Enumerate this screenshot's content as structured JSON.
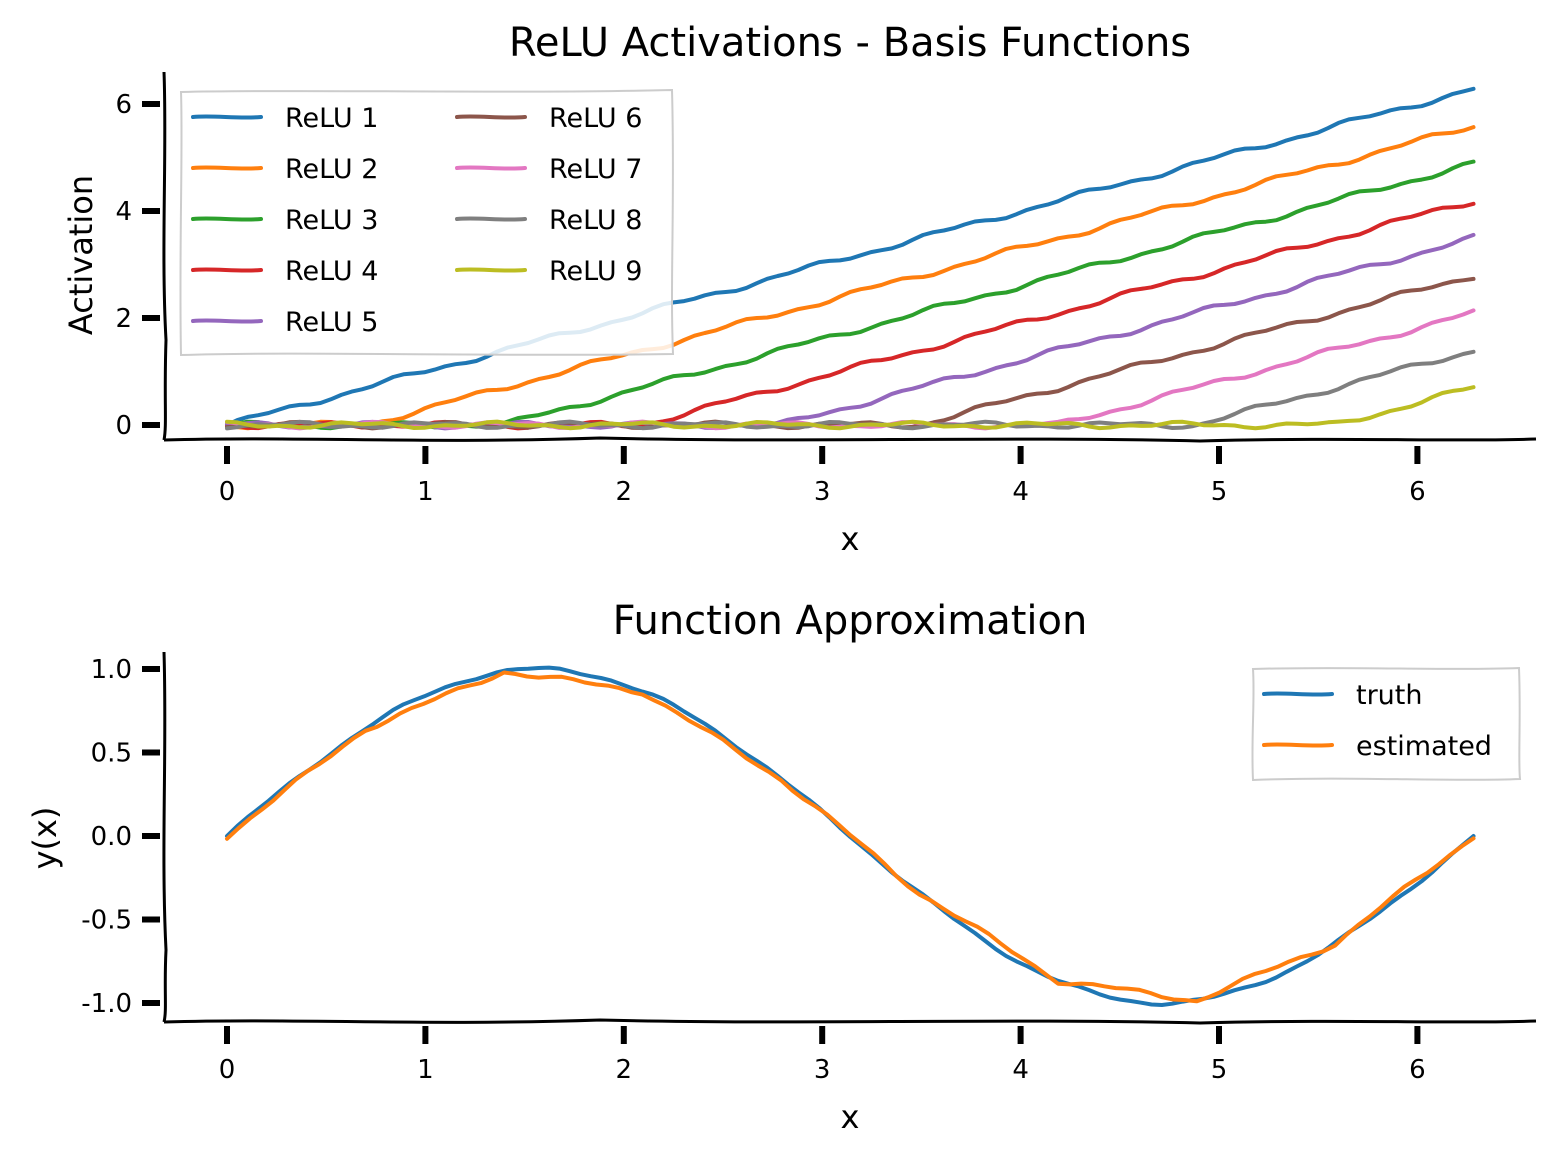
{
  "chart_data": [
    {
      "type": "line",
      "title": "ReLU Activations - Basis Functions",
      "xlabel": "x",
      "ylabel": "Activation",
      "xlim": [
        -0.3,
        6.6
      ],
      "ylim": [
        -0.3,
        6.6
      ],
      "xticks": [
        0,
        1,
        2,
        3,
        4,
        5,
        6
      ],
      "xtick_labels": [
        "0",
        "1",
        "2",
        "3",
        "4",
        "5",
        "6"
      ],
      "yticks": [
        0,
        2,
        4,
        6
      ],
      "ytick_labels": [
        "0",
        "2",
        "4",
        "6"
      ],
      "grid": false,
      "legend": "upper left",
      "legend_columns": 2,
      "x_domain": [
        0,
        6.283
      ],
      "series": [
        {
          "name": "ReLU 1",
          "color": "#1f77b4",
          "knot": 0.0,
          "values_at": {
            "x": [
              0,
              3,
              6.283
            ],
            "y": [
              0,
              3,
              6.283
            ]
          }
        },
        {
          "name": "ReLU 2",
          "color": "#ff7f0e",
          "knot": 0.698,
          "values_at": {
            "x": [
              0.698,
              3,
              6.283
            ],
            "y": [
              0,
              2.302,
              5.585
            ]
          }
        },
        {
          "name": "ReLU 3",
          "color": "#2ca02c",
          "knot": 1.396,
          "values_at": {
            "x": [
              1.396,
              3,
              6.283
            ],
            "y": [
              0,
              1.604,
              4.887
            ]
          }
        },
        {
          "name": "ReLU 4",
          "color": "#d62728",
          "knot": 2.094,
          "values_at": {
            "x": [
              2.094,
              4,
              6.283
            ],
            "y": [
              0,
              1.906,
              4.189
            ]
          }
        },
        {
          "name": "ReLU 5",
          "color": "#9467bd",
          "knot": 2.793,
          "values_at": {
            "x": [
              2.793,
              4,
              6.283
            ],
            "y": [
              0,
              1.207,
              3.49
            ]
          }
        },
        {
          "name": "ReLU 6",
          "color": "#8c564b",
          "knot": 3.491,
          "values_at": {
            "x": [
              3.491,
              5,
              6.283
            ],
            "y": [
              0,
              1.509,
              2.792
            ]
          }
        },
        {
          "name": "ReLU 7",
          "color": "#e377c2",
          "knot": 4.189,
          "values_at": {
            "x": [
              4.189,
              5,
              6.283
            ],
            "y": [
              0,
              0.811,
              2.094
            ]
          }
        },
        {
          "name": "ReLU 8",
          "color": "#7f7f7f",
          "knot": 4.887,
          "values_at": {
            "x": [
              4.887,
              6,
              6.283
            ],
            "y": [
              0,
              1.113,
              1.396
            ]
          }
        },
        {
          "name": "ReLU 9",
          "color": "#bcbd22",
          "knot": 5.585,
          "values_at": {
            "x": [
              5.585,
              6,
              6.283
            ],
            "y": [
              0,
              0.415,
              0.698
            ]
          }
        }
      ]
    },
    {
      "type": "line",
      "title": "Function Approximation",
      "xlabel": "x",
      "ylabel": "y(x)",
      "xlim": [
        -0.3,
        6.6
      ],
      "ylim": [
        -1.1,
        1.1
      ],
      "xticks": [
        0,
        1,
        2,
        3,
        4,
        5,
        6
      ],
      "xtick_labels": [
        "0",
        "1",
        "2",
        "3",
        "4",
        "5",
        "6"
      ],
      "yticks": [
        1.0,
        0.5,
        0.0,
        -0.5,
        -1.0
      ],
      "ytick_labels": [
        "1.0",
        "0.5",
        "0.0",
        "-0.5",
        "-1.0"
      ],
      "grid": false,
      "legend": "upper right",
      "series": [
        {
          "name": "truth",
          "color": "#1f77b4",
          "x": [
            0,
            0.35,
            0.7,
            1.05,
            1.4,
            1.571,
            1.75,
            2.1,
            2.45,
            2.8,
            3.15,
            3.5,
            3.85,
            4.2,
            4.55,
            4.712,
            4.9,
            5.25,
            5.6,
            5.95,
            6.283
          ],
          "y": [
            0,
            0.343,
            0.644,
            0.867,
            0.985,
            1.0,
            0.984,
            0.863,
            0.638,
            0.335,
            -0.008,
            -0.351,
            -0.65,
            -0.872,
            -0.987,
            -1.0,
            -0.982,
            -0.859,
            -0.631,
            -0.327,
            0
          ]
        },
        {
          "name": "estimated",
          "color": "#ff7f0e",
          "x": [
            0,
            0.698,
            1.396,
            2.094,
            2.793,
            3.491,
            4.189,
            4.887,
            5.585,
            6.283
          ],
          "y": [
            0,
            0.643,
            0.985,
            0.866,
            0.342,
            -0.342,
            -0.866,
            -0.985,
            -0.643,
            0
          ]
        }
      ]
    }
  ]
}
